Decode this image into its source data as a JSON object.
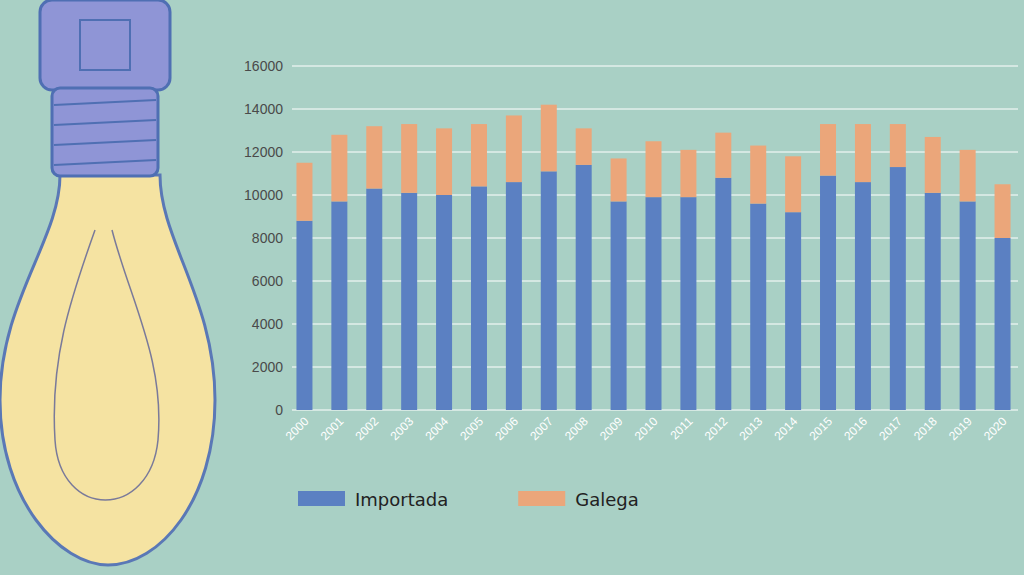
{
  "chart_data": {
    "type": "bar",
    "stacked": true,
    "grid": true,
    "legend": "bottom",
    "categories": [
      "2000",
      "2001",
      "2002",
      "2003",
      "2004",
      "2005",
      "2006",
      "2007",
      "2008",
      "2009",
      "2010",
      "2011",
      "2012",
      "2013",
      "2014",
      "2015",
      "2016",
      "2017",
      "2018",
      "2019",
      "2020"
    ],
    "series": [
      {
        "name": "Importada",
        "color": "#5b80c2",
        "values": [
          8800,
          9700,
          10300,
          10100,
          10000,
          10400,
          10600,
          11100,
          11400,
          9700,
          9900,
          9900,
          10800,
          9600,
          9200,
          10900,
          10600,
          11300,
          10100,
          9700,
          8000
        ]
      },
      {
        "name": "Galega",
        "color": "#eba67a",
        "values": [
          2700,
          3100,
          2900,
          3200,
          3100,
          2900,
          3100,
          3100,
          1700,
          2000,
          2600,
          2200,
          2100,
          2700,
          2600,
          2400,
          2700,
          2000,
          2600,
          2400,
          2500
        ]
      }
    ],
    "ylim": [
      0,
      16000
    ],
    "yticks": [
      0,
      2000,
      4000,
      6000,
      8000,
      10000,
      12000,
      14000,
      16000
    ]
  }
}
